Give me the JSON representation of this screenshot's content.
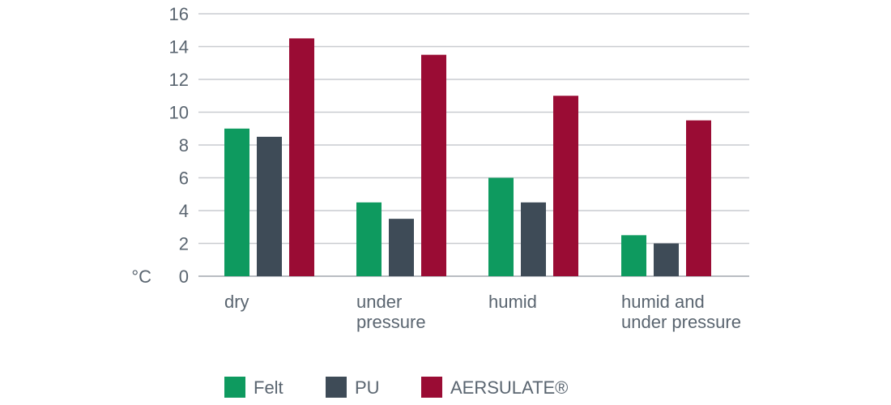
{
  "chart_data": {
    "type": "bar",
    "y_unit": "°C",
    "ylim": [
      0,
      16
    ],
    "y_ticks": [
      0,
      2,
      4,
      6,
      8,
      10,
      12,
      14,
      16
    ],
    "grid": true,
    "legend_position": "bottom",
    "categories": [
      [
        "dry"
      ],
      [
        "under",
        "pressure"
      ],
      [
        "humid"
      ],
      [
        "humid and",
        "under pressure"
      ]
    ],
    "series": [
      {
        "name": "Felt",
        "color": "#0e9a5f",
        "values": [
          9.0,
          4.5,
          6.0,
          2.5
        ]
      },
      {
        "name": "PU",
        "color": "#3e4b57",
        "values": [
          8.5,
          3.5,
          4.5,
          2.0
        ]
      },
      {
        "name": "AERSULATE®",
        "color": "#9a0c34",
        "values": [
          14.5,
          13.5,
          11.0,
          9.5
        ]
      }
    ]
  }
}
